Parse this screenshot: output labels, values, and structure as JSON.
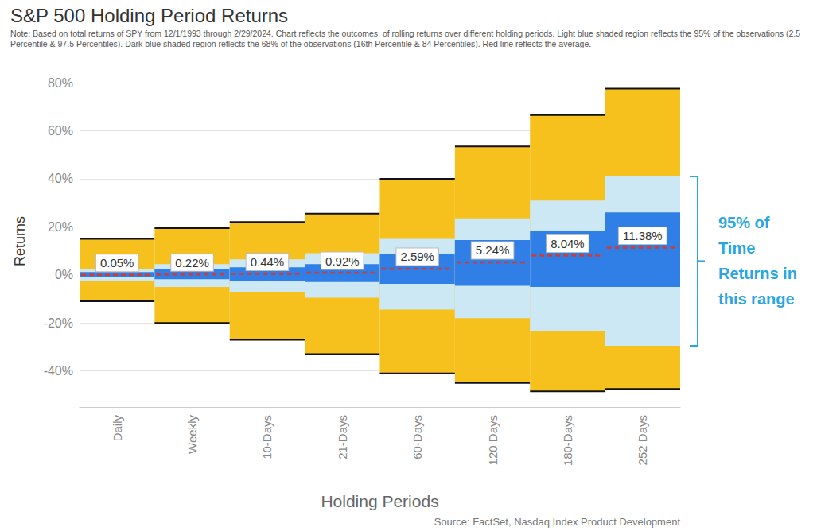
{
  "chart_data": {
    "type": "range_bands",
    "title": "S&P 500 Holding Period Returns",
    "subtitle": "Note: Based on total returns of SPY from 12/1/1993 through 2/29/2024. Chart reflects the outcomes  of rolling returns over different holding periods. Light blue shaded region reflects the 95% of the observations (2.5 Percentile & 97.5 Percentiles). Dark blue shaded region reflects the 68% of the observations (16th Percentile & 84 Percentiles). Red line reflects the average.",
    "source": "Source: FactSet, Nasdaq Index Product Development",
    "x_label": "Holding Periods",
    "y_label": "Returns",
    "categories": [
      "Daily",
      "Weekly",
      "10-Days",
      "21-Days",
      "60-Days",
      "120 Days",
      "180-Days",
      "252 Days"
    ],
    "bands": [
      {
        "color": "#f6c11c",
        "low": [
          -11,
          -20,
          -27,
          -33,
          -41,
          -45,
          -48.5,
          -47.5
        ],
        "high": [
          15,
          19.5,
          22,
          25.5,
          40,
          53.5,
          66.5,
          77.5
        ]
      },
      {
        "color": "#cce8f5",
        "low": [
          -2.6,
          -5,
          -7,
          -9.5,
          -14.5,
          -18,
          -23.5,
          -29.5
        ],
        "high": [
          2.3,
          4.5,
          6.5,
          9,
          15,
          23.5,
          31,
          41
        ]
      },
      {
        "color": "#2f7fe6",
        "low": [
          -1,
          -1.8,
          -2.5,
          -3,
          -3.7,
          -4.5,
          -5,
          -5
        ],
        "high": [
          1.2,
          2.3,
          3.2,
          4.5,
          8.5,
          14.5,
          18.5,
          26
        ]
      }
    ],
    "average": {
      "color": "#d23a35",
      "line_style": "dashed",
      "values": [
        0.05,
        0.22,
        0.44,
        0.92,
        2.59,
        5.24,
        8.04,
        11.38
      ],
      "value_labels": [
        "0.05%",
        "0.22%",
        "0.44%",
        "0.92%",
        "2.59%",
        "5.24%",
        "8.04%",
        "11.38%"
      ]
    },
    "data_labels": true,
    "annotation": {
      "text": "95% of\nTime\nReturns in\nthis range",
      "color": "#2aa6e0"
    },
    "ylim": [
      -55,
      83
    ],
    "yticks": [
      {
        "value": -40,
        "label": "-40%"
      },
      {
        "value": -20,
        "label": "-20%"
      },
      {
        "value": 0,
        "label": "0%"
      },
      {
        "value": 20,
        "label": "20%"
      },
      {
        "value": 40,
        "label": "40%"
      },
      {
        "value": 60,
        "label": "60%"
      },
      {
        "value": 80,
        "label": "80%"
      }
    ],
    "grid": true
  }
}
